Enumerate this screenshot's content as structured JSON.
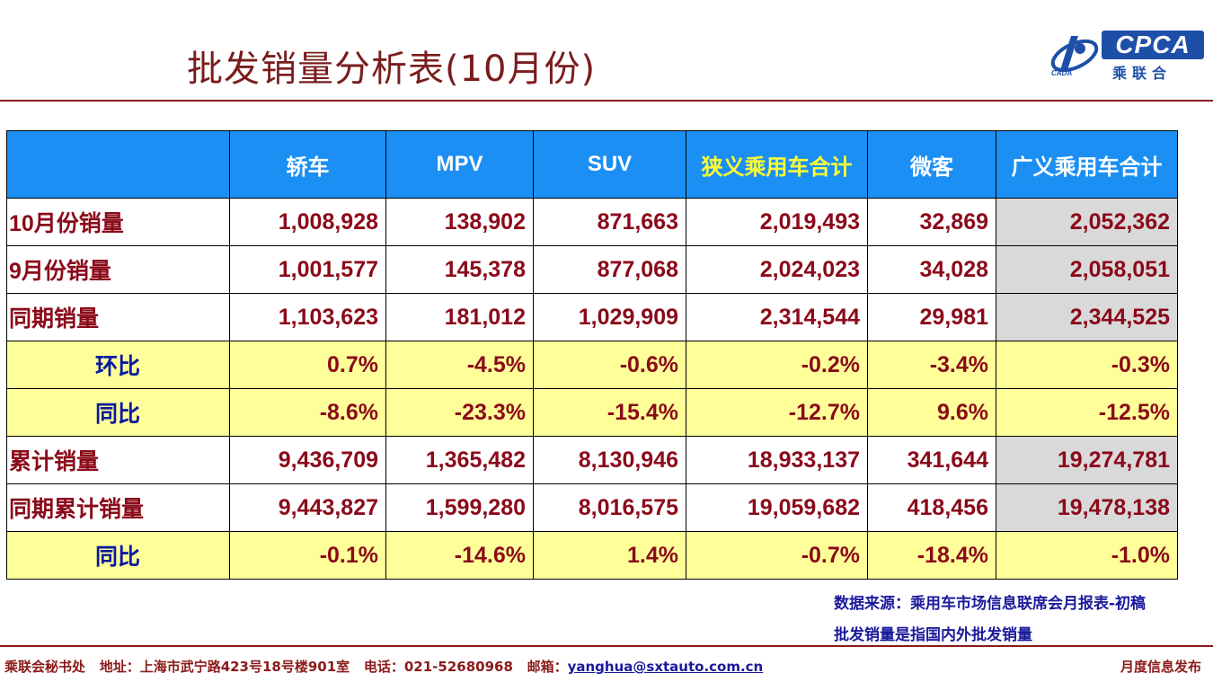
{
  "title": "批发销量分析表(10月份)",
  "logo": {
    "cpca": "CPCA",
    "cn": "乘联合",
    "cada": "CADA"
  },
  "table": {
    "headers": [
      "",
      "轿车",
      "MPV",
      "SUV",
      "狭义乘用车合计",
      "微客",
      "广义乘用车合计"
    ],
    "rows": [
      {
        "label": "10月份销量",
        "type": "value",
        "cells": [
          "1,008,928",
          "138,902",
          "871,663",
          "2,019,493",
          "32,869",
          "2,052,362"
        ]
      },
      {
        "label": "9月份销量",
        "type": "value",
        "cells": [
          "1,001,577",
          "145,378",
          "877,068",
          "2,024,023",
          "34,028",
          "2,058,051"
        ]
      },
      {
        "label": "同期销量",
        "type": "value",
        "cells": [
          "1,103,623",
          "181,012",
          "1,029,909",
          "2,314,544",
          "29,981",
          "2,344,525"
        ]
      },
      {
        "label": "环比",
        "type": "pct",
        "cells": [
          "0.7%",
          "-4.5%",
          "-0.6%",
          "-0.2%",
          "-3.4%",
          "-0.3%"
        ]
      },
      {
        "label": "同比",
        "type": "pct",
        "cells": [
          "-8.6%",
          "-23.3%",
          "-15.4%",
          "-12.7%",
          "9.6%",
          "-12.5%"
        ]
      },
      {
        "label": "累计销量",
        "type": "value",
        "cells": [
          "9,436,709",
          "1,365,482",
          "8,130,946",
          "18,933,137",
          "341,644",
          "19,274,781"
        ]
      },
      {
        "label": "同期累计销量",
        "type": "value",
        "cells": [
          "9,443,827",
          "1,599,280",
          "8,016,575",
          "19,059,682",
          "418,456",
          "19,478,138"
        ]
      },
      {
        "label": "同比",
        "type": "pct",
        "cells": [
          "-0.1%",
          "-14.6%",
          "1.4%",
          "-0.7%",
          "-18.4%",
          "-1.0%"
        ]
      }
    ]
  },
  "notes": {
    "source": "数据来源：乘用车市场信息联席会月报表-初稿",
    "definition": "批发销量是指国内外批发销量"
  },
  "footer": {
    "org": "乘联会秘书处",
    "address": "地址：上海市武宁路423号18号楼901室",
    "phone": "电话：021-52680968",
    "email_label": "邮箱：",
    "email": "yanghua@sxtauto.com.cn",
    "right": "月度信息发布"
  },
  "colors": {
    "title": "#7a1c1c",
    "header_bg": "#1b8ff3",
    "highlight_header": "#ffff33",
    "pct_row_bg": "#ffff99",
    "grey_col": "#d9d9d9",
    "value_text": "#8b0a1a",
    "note_text": "#1a1a9c"
  }
}
